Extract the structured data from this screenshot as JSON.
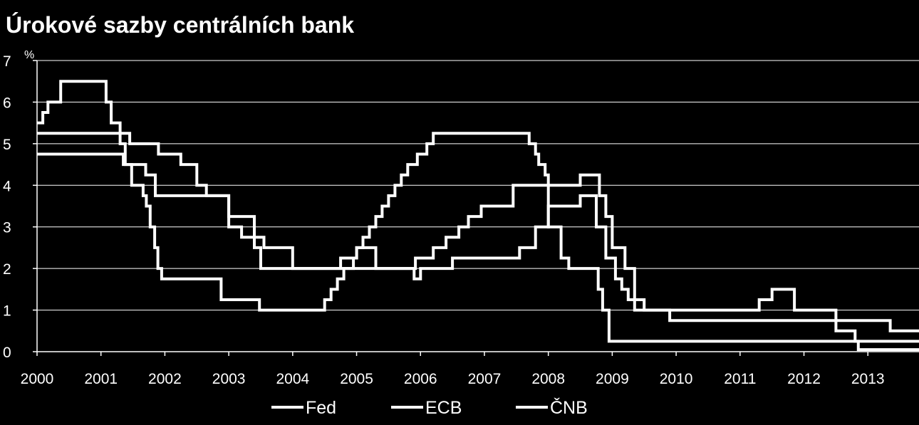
{
  "chart_data": {
    "type": "line",
    "title": "Úrokové sazby centrálních bank",
    "ylabel": "%",
    "xlabel": "",
    "xlim": [
      2000,
      2013.8
    ],
    "ylim": [
      0,
      7
    ],
    "yticks": [
      "0",
      "1",
      "2",
      "3",
      "4",
      "5",
      "6",
      "7"
    ],
    "xticks": [
      "2000",
      "2001",
      "2002",
      "2003",
      "2004",
      "2005",
      "2006",
      "2007",
      "2008",
      "2009",
      "2010",
      "2011",
      "2012",
      "2013"
    ],
    "grid": "horizontal",
    "legend": "bottom",
    "series": [
      {
        "name": "Fed",
        "color": "#ffffff",
        "x": [
          2000.0,
          2000.04,
          2000.09,
          2000.17,
          2000.37,
          2000.98,
          2001.08,
          2001.16,
          2001.3,
          2001.38,
          2001.48,
          2001.66,
          2001.71,
          2001.77,
          2001.84,
          2001.89,
          2001.95,
          2002.88,
          2003.48,
          2004.5,
          2004.6,
          2004.7,
          2004.8,
          2004.95,
          2005.0,
          2005.1,
          2005.2,
          2005.3,
          2005.4,
          2005.5,
          2005.6,
          2005.7,
          2005.8,
          2005.95,
          2006.1,
          2006.2,
          2006.3,
          2006.5,
          2007.7,
          2007.8,
          2007.85,
          2007.95,
          2008.0,
          2008.05,
          2008.2,
          2008.32,
          2008.78,
          2008.85,
          2008.95,
          2013.8
        ],
        "y": [
          5.5,
          5.5,
          5.75,
          6.0,
          6.5,
          6.5,
          6.0,
          5.5,
          5.0,
          4.5,
          4.0,
          3.75,
          3.5,
          3.0,
          2.5,
          2.0,
          1.75,
          1.25,
          1.0,
          1.25,
          1.5,
          1.75,
          2.0,
          2.25,
          2.5,
          2.75,
          3.0,
          3.25,
          3.5,
          3.75,
          4.0,
          4.25,
          4.5,
          4.75,
          5.0,
          5.25,
          5.25,
          5.25,
          5.0,
          4.75,
          4.5,
          4.25,
          3.0,
          3.0,
          2.25,
          2.0,
          1.5,
          1.0,
          0.25,
          0.25
        ]
      },
      {
        "name": "ECB",
        "color": "#ffffff",
        "x": [
          2000.0,
          2001.35,
          2001.7,
          2001.85,
          2003.0,
          2003.4,
          2003.5,
          2005.92,
          2006.2,
          2006.4,
          2006.6,
          2006.75,
          2006.95,
          2007.45,
          2008.5,
          2008.8,
          2008.9,
          2009.0,
          2009.2,
          2009.35,
          2011.3,
          2011.5,
          2011.85,
          2012.5,
          2013.35,
          2013.8
        ],
        "y": [
          4.75,
          4.5,
          4.25,
          3.75,
          3.25,
          2.5,
          2.0,
          2.25,
          2.5,
          2.75,
          3.0,
          3.25,
          3.5,
          4.0,
          4.25,
          3.75,
          3.25,
          2.5,
          2.0,
          1.0,
          1.25,
          1.5,
          1.0,
          0.75,
          0.5,
          0.5
        ]
      },
      {
        "name": "ČNB",
        "color": "#ffffff",
        "x": [
          2000.0,
          2001.25,
          2001.45,
          2001.9,
          2002.25,
          2002.5,
          2002.65,
          2003.0,
          2003.2,
          2003.55,
          2004.0,
          2004.55,
          2004.75,
          2005.0,
          2005.3,
          2005.9,
          2006.0,
          2006.5,
          2007.55,
          2007.8,
          2008.0,
          2008.5,
          2008.75,
          2008.9,
          2009.05,
          2009.15,
          2009.25,
          2009.5,
          2009.9,
          2010.0,
          2012.5,
          2012.8,
          2012.85,
          2013.8
        ],
        "y": [
          5.25,
          5.25,
          5.0,
          4.75,
          4.5,
          4.0,
          3.75,
          3.0,
          2.75,
          2.5,
          2.0,
          2.0,
          2.25,
          2.5,
          2.0,
          1.75,
          2.0,
          2.25,
          2.5,
          3.0,
          3.5,
          3.75,
          3.0,
          2.25,
          1.75,
          1.5,
          1.25,
          1.0,
          0.75,
          0.75,
          0.5,
          0.25,
          0.05,
          0.05
        ]
      }
    ]
  }
}
